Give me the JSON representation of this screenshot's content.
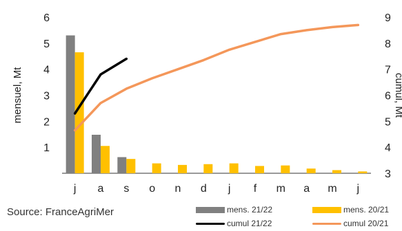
{
  "source_text": "Source: FranceAgriMer",
  "colors": {
    "mens_2122": "#808080",
    "mens_2021": "#FFC000",
    "cumul_2122": "#000000",
    "cumul_2021": "#F4975A"
  },
  "chart_data": {
    "type": "bar+line",
    "categories": [
      "j",
      "a",
      "s",
      "o",
      "n",
      "d",
      "j",
      "f",
      "m",
      "a",
      "m",
      "j"
    ],
    "ylabel_left": "mensuel, Mt",
    "ylabel_right": "cumul, Mt",
    "ylim_left": [
      0,
      6
    ],
    "ylim_right": [
      3,
      9
    ],
    "yticks_left": [
      "1",
      "2",
      "3",
      "4",
      "5",
      "6"
    ],
    "yticks_right": [
      "3",
      "4",
      "5",
      "6",
      "7",
      "8",
      "9"
    ],
    "legend_placement": "bottom",
    "series": [
      {
        "name": "mens. 21/22",
        "type": "bar",
        "axis": "left",
        "values": [
          5.3,
          1.48,
          0.62,
          null,
          null,
          null,
          null,
          null,
          null,
          null,
          null,
          null
        ]
      },
      {
        "name": "mens. 20/21",
        "type": "bar",
        "axis": "left",
        "values": [
          4.65,
          1.05,
          0.55,
          0.38,
          0.32,
          0.35,
          0.38,
          0.28,
          0.3,
          0.18,
          0.12,
          0.07
        ]
      },
      {
        "name": "cumul 21/22",
        "type": "line",
        "axis": "right",
        "values": [
          5.3,
          6.8,
          7.4,
          null,
          null,
          null,
          null,
          null,
          null,
          null,
          null,
          null
        ]
      },
      {
        "name": "cumul 20/21",
        "type": "line",
        "axis": "right",
        "values": [
          4.65,
          5.7,
          6.25,
          6.65,
          7.0,
          7.35,
          7.75,
          8.05,
          8.35,
          8.5,
          8.62,
          8.7
        ]
      }
    ]
  }
}
